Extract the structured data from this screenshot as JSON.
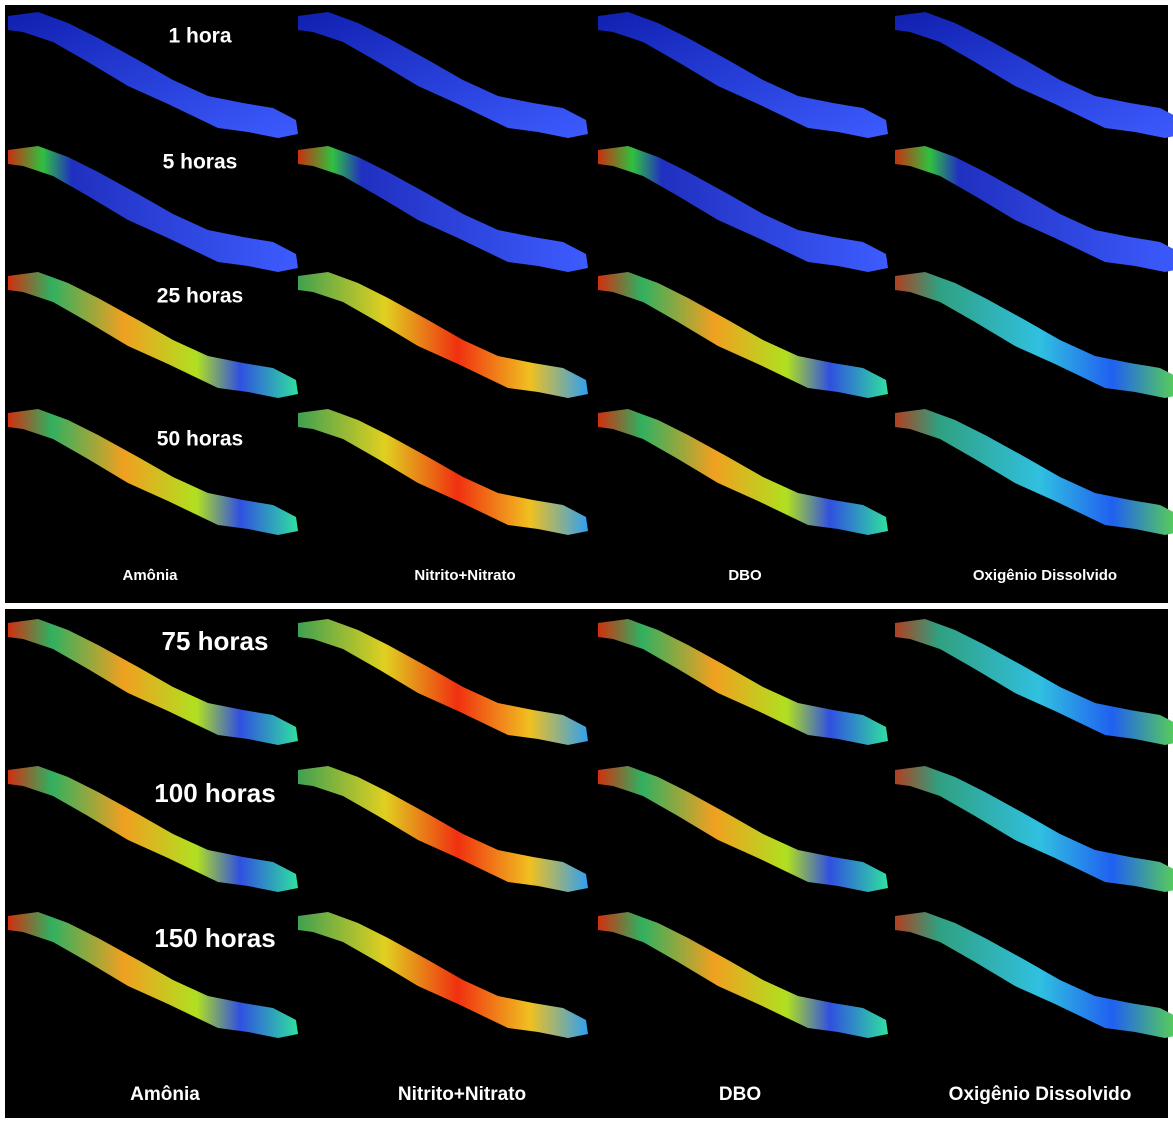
{
  "panels": [
    {
      "time_labels": [
        "1 hora",
        "5 horas",
        "25 horas",
        "50 horas"
      ],
      "column_labels": [
        "Amônia",
        "Nitrito+Nitrato",
        "DBO",
        "Oxigênio Dissolvido"
      ]
    },
    {
      "time_labels": [
        "75 horas",
        "100 horas",
        "150 horas"
      ],
      "column_labels": [
        "Amônia",
        "Nitrito+Nitrato",
        "DBO",
        "Oxigênio Dissolvido"
      ]
    }
  ]
}
